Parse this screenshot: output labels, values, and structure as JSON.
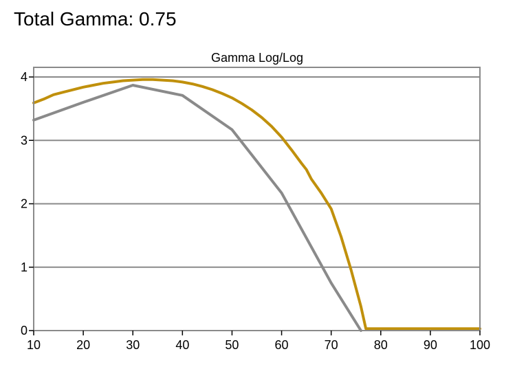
{
  "page": {
    "title": "Total Gamma: 0.75"
  },
  "chart_data": {
    "type": "line",
    "title": "Gamma Log/Log",
    "xlabel": "",
    "ylabel": "",
    "xlim": [
      10,
      100
    ],
    "ylim": [
      0,
      4
    ],
    "xticks": [
      "10",
      "20",
      "30",
      "40",
      "50",
      "60",
      "70",
      "80",
      "90",
      "100"
    ],
    "yticks": [
      "0",
      "1",
      "2",
      "3",
      "4"
    ],
    "grid": "horizontal",
    "legend": "none",
    "series": [
      {
        "color": "#8a8a8a",
        "x": [
          10,
          20,
          30,
          40,
          50,
          60,
          70,
          76
        ],
        "y": [
          3.32,
          3.6,
          3.87,
          3.71,
          3.17,
          2.17,
          0.75,
          0
        ]
      },
      {
        "color": "#c0900c",
        "x": [
          10,
          12,
          14,
          16,
          18,
          20,
          22,
          24,
          26,
          28,
          30,
          32,
          34,
          36,
          38,
          40,
          42,
          44,
          46,
          48,
          50,
          52,
          54,
          56,
          58,
          60,
          62,
          64,
          65,
          66,
          68,
          70,
          72,
          74,
          76,
          77,
          80,
          90,
          100
        ],
        "y": [
          3.59,
          3.65,
          3.72,
          3.76,
          3.8,
          3.84,
          3.87,
          3.9,
          3.92,
          3.94,
          3.95,
          3.96,
          3.96,
          3.95,
          3.94,
          3.92,
          3.89,
          3.85,
          3.8,
          3.74,
          3.67,
          3.58,
          3.48,
          3.36,
          3.22,
          3.05,
          2.85,
          2.64,
          2.54,
          2.39,
          2.17,
          1.92,
          1.48,
          0.96,
          0.38,
          0.03,
          0.03,
          0.03,
          0.03
        ]
      }
    ]
  }
}
